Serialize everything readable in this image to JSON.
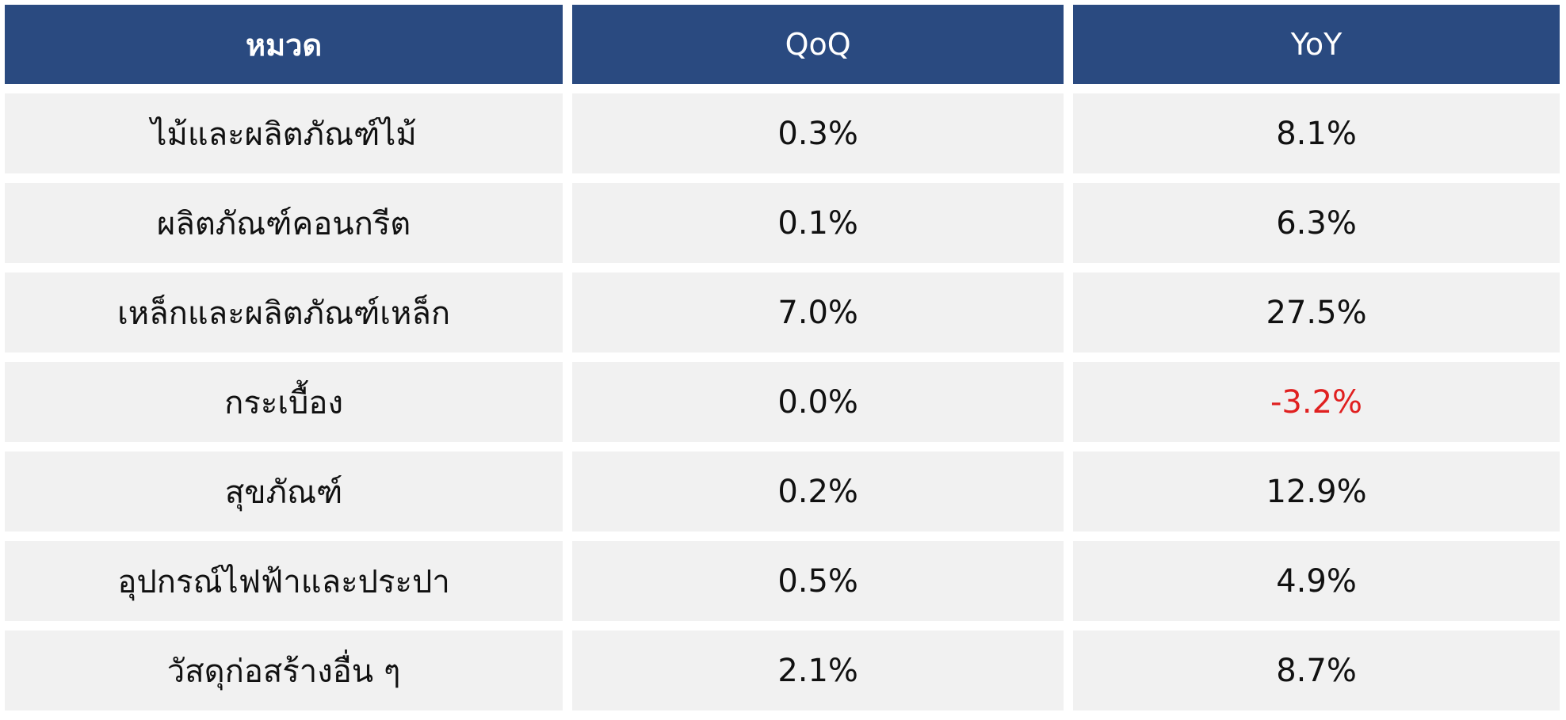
{
  "chart_data": {
    "type": "table",
    "columns": [
      "หมวด",
      "QoQ",
      "YoY"
    ],
    "rows": [
      {
        "category": "ไม้และผลิตภัณฑ์ไม้",
        "qoq": "0.3%",
        "yoy": "8.1%"
      },
      {
        "category": "ผลิตภัณฑ์คอนกรีต",
        "qoq": "0.1%",
        "yoy": "6.3%"
      },
      {
        "category": "เหล็กและผลิตภัณฑ์เหล็ก",
        "qoq": "7.0%",
        "yoy": "27.5%"
      },
      {
        "category": "กระเบื้อง",
        "qoq": "0.0%",
        "yoy": "-3.2%"
      },
      {
        "category": "สุขภัณฑ์",
        "qoq": "0.2%",
        "yoy": "12.9%"
      },
      {
        "category": "อุปกรณ์ไฟฟ้าและประปา",
        "qoq": "0.5%",
        "yoy": "4.9%"
      },
      {
        "category": "วัสดุก่อสร้างอื่น ๆ",
        "qoq": "2.1%",
        "yoy": "8.7%"
      }
    ]
  },
  "colors": {
    "header_bg": "#2a4a80",
    "header_text": "#ffffff",
    "row_bg": "#f1f1f1",
    "text": "#111111",
    "negative": "#e02020"
  }
}
